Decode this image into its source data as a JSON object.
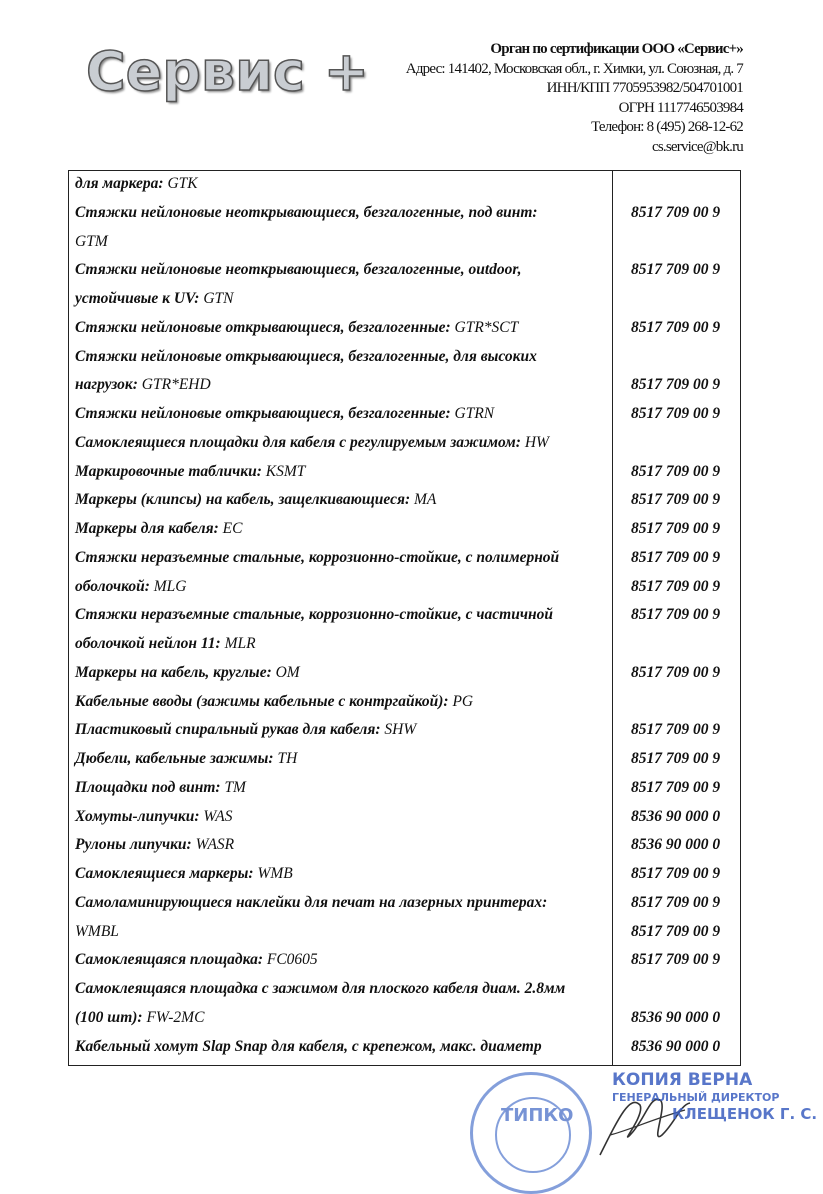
{
  "header": {
    "logo_text": "Сервис +",
    "org_title": "Орган по сертификации ООО «Сервис+»",
    "address": "Адрес: 141402,  Московская обл., г. Химки, ул. Союзная, д. 7",
    "inn": "ИНН/КПП 7705953982/504701001",
    "ogrn": "ОГРН 1117746503984",
    "phone": "Телефон: 8 (495) 268-12-62",
    "email": "cs.service@bk.ru"
  },
  "rows": [
    {
      "desc": "для маркера: ",
      "model": "GTK",
      "code": ""
    },
    {
      "desc": "Стяжки нейлоновые неоткрывающиеся, безгалогенные, под винт:",
      "model": "",
      "code": "8517 709 00 9"
    },
    {
      "desc": "",
      "model": "GTM",
      "code": ""
    },
    {
      "desc": "Стяжки нейлоновые неоткрывающиеся, безгалогенные, outdoor,",
      "model": "",
      "code": "8517 709 00 9"
    },
    {
      "desc": "устойчивые к UV: ",
      "model": "GTN",
      "code": ""
    },
    {
      "desc": "Стяжки нейлоновые открывающиеся, безгалогенные: ",
      "model": "GTR*SCT",
      "code": "8517 709 00 9"
    },
    {
      "desc": "Стяжки нейлоновые открывающиеся, безгалогенные, для высоких",
      "model": "",
      "code": ""
    },
    {
      "desc": "нагрузок: ",
      "model": "GTR*EHD",
      "code": "8517 709 00 9"
    },
    {
      "desc": "Стяжки нейлоновые открывающиеся, безгалогенные: ",
      "model": "GTRN",
      "code": "8517 709 00 9"
    },
    {
      "desc": "Самоклеящиеся площадки для кабеля с регулируемым зажимом: ",
      "model": "HW",
      "code": ""
    },
    {
      "desc": "Маркировочные таблички: ",
      "model": "KSMT",
      "code": "8517 709 00 9"
    },
    {
      "desc": "Маркеры (клипсы) на кабель, защелкивающиеся: ",
      "model": "MA",
      "code": "8517 709 00 9"
    },
    {
      "desc": "Маркеры для кабеля: ",
      "model": "EC",
      "code": "8517 709 00 9"
    },
    {
      "desc": "Стяжки неразъемные стальные, коррозионно-стойкие, с полимерной",
      "model": "",
      "code": "8517 709 00 9"
    },
    {
      "desc": "оболочкой: ",
      "model": "MLG",
      "code": "8517 709 00 9"
    },
    {
      "desc": "Стяжки неразъемные стальные, коррозионно-стойкие, с частичной",
      "model": "",
      "code": "8517 709 00 9"
    },
    {
      "desc": "оболочкой нейлон 11: ",
      "model": "MLR",
      "code": ""
    },
    {
      "desc": "Маркеры на кабель, круглые: ",
      "model": "OM",
      "code": "8517 709 00 9"
    },
    {
      "desc": "Кабельные вводы (зажимы кабельные с контргайкой): ",
      "model": "PG",
      "code": ""
    },
    {
      "desc": "Пластиковый спиральный рукав для кабеля: ",
      "model": "SHW",
      "code": "8517 709 00 9"
    },
    {
      "desc": "Дюбели, кабельные зажимы: ",
      "model": "TH",
      "code": "8517 709 00 9"
    },
    {
      "desc": "Площадки под винт: ",
      "model": "TM",
      "code": "8517 709 00 9"
    },
    {
      "desc": "Хомуты-липучки: ",
      "model": "WAS",
      "code": "8536 90 000 0"
    },
    {
      "desc": "Рулоны липучки: ",
      "model": "WASR",
      "code": "8536 90 000 0"
    },
    {
      "desc": "Самоклеящиеся маркеры: ",
      "model": "WMB",
      "code": "8517 709 00 9"
    },
    {
      "desc": "Самоламинирующиеся наклейки для печат на лазерных принтерах:",
      "model": "",
      "code": "8517 709 00 9"
    },
    {
      "desc": "",
      "model": "WMBL",
      "code": "8517 709 00 9"
    },
    {
      "desc": "Самоклеящаяся площадка: ",
      "model": "FC0605",
      "code": "8517 709 00 9"
    },
    {
      "desc": "Самоклеящаяся площадка с зажимом для плоского кабеля диам. 2.8мм",
      "model": "",
      "code": ""
    },
    {
      "desc": "(100 шт): ",
      "model": "FW-2MC",
      "code": "8536 90 000 0"
    },
    {
      "desc": "Кабельный хомут Slap Snap для кабеля, с крепежом, макс. диаметр",
      "model": "",
      "code": "8536 90 000 0"
    }
  ],
  "stamp": {
    "brand": "ТИПКО",
    "copy_line1": "КОПИЯ  ВЕРНА",
    "copy_line2": "ГЕНЕРАЛЬНЫЙ ДИРЕКТОР",
    "copy_line3": "КЛЕЩЕНОК Г. С.",
    "color": "#3b5fc0"
  }
}
